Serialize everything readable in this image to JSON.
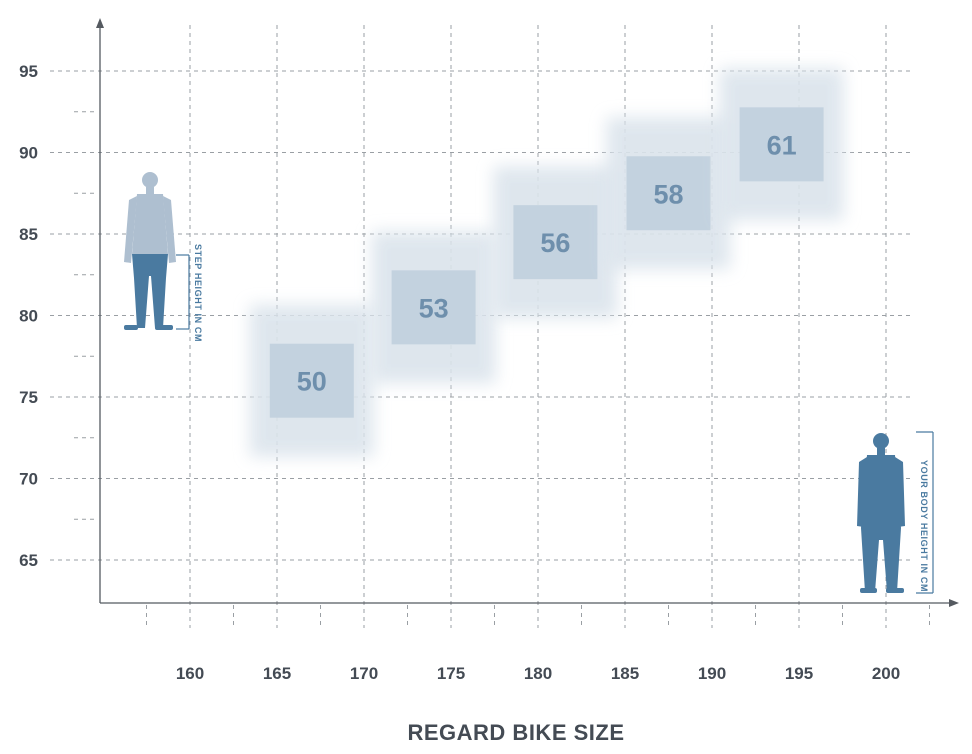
{
  "chart_data": {
    "type": "scatter",
    "title": "",
    "xlabel": "REGARD BIKE SIZE",
    "ylabel": "",
    "x_ticks": [
      160,
      165,
      170,
      175,
      180,
      185,
      190,
      195,
      200
    ],
    "y_ticks": [
      65,
      70,
      75,
      80,
      85,
      90,
      95
    ],
    "xlim": [
      157.5,
      202.5
    ],
    "ylim": [
      62.5,
      97.5
    ],
    "grid": true,
    "points": [
      {
        "x": 167,
        "y": 76,
        "label": "50"
      },
      {
        "x": 174,
        "y": 80.5,
        "label": "53"
      },
      {
        "x": 181,
        "y": 84.5,
        "label": "56"
      },
      {
        "x": 187.5,
        "y": 87.5,
        "label": "58"
      },
      {
        "x": 194,
        "y": 90.5,
        "label": "61"
      }
    ],
    "annotations": {
      "step_height": "STEP HEIGHT IN CM",
      "body_height": "YOUR BODY HEIGHT IN CM"
    },
    "colors": {
      "box": "#c3d2df",
      "box_glow": "#dbe4ec",
      "label": "#6e8fac",
      "figure_light": "#aebfd0",
      "figure_dark": "#4a7aa0",
      "axis": "#555a60",
      "grid": "#9a9fa4"
    }
  }
}
